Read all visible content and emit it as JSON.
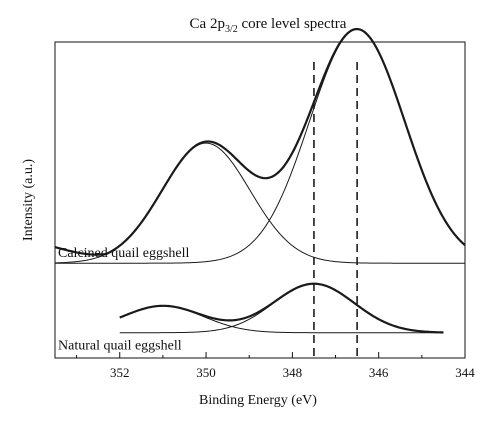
{
  "chart_data": {
    "type": "line",
    "title": {
      "prefix": "Ca 2p",
      "subscript": "3/2",
      "suffix": " core level spectra"
    },
    "xlabel": "Binding Energy (eV)",
    "ylabel": "Intensity (a.u.)",
    "x_axis": {
      "reversed": true,
      "xlim": [
        353.5,
        344
      ],
      "ticks": [
        352,
        350,
        348,
        346,
        344
      ],
      "tick_labels": [
        "352",
        "350",
        "348",
        "346",
        "344"
      ]
    },
    "y_axis": {
      "ylim": [
        0,
        100
      ],
      "ticks": []
    },
    "grid": false,
    "reference_lines": [
      347.5,
      346.5
    ],
    "samples": [
      {
        "name": "Calcined quail eggshell",
        "baseline": 30,
        "components": [
          {
            "center": 350.0,
            "height": 38,
            "fwhm": 2.4
          },
          {
            "center": 346.5,
            "height": 74,
            "fwhm": 2.6
          }
        ],
        "envelope": {
          "x_start": 353.5,
          "x_end": 344,
          "start_offset": 5
        }
      },
      {
        "name": "Natural quail eggshell",
        "baseline": 8,
        "components": [
          {
            "center": 351.0,
            "height": 8.5,
            "fwhm": 2.2
          },
          {
            "center": 347.5,
            "height": 15.5,
            "fwhm": 2.2
          }
        ],
        "envelope": {
          "x_start": 352.0,
          "x_end": 344.5,
          "start_offset": 0
        }
      }
    ]
  }
}
